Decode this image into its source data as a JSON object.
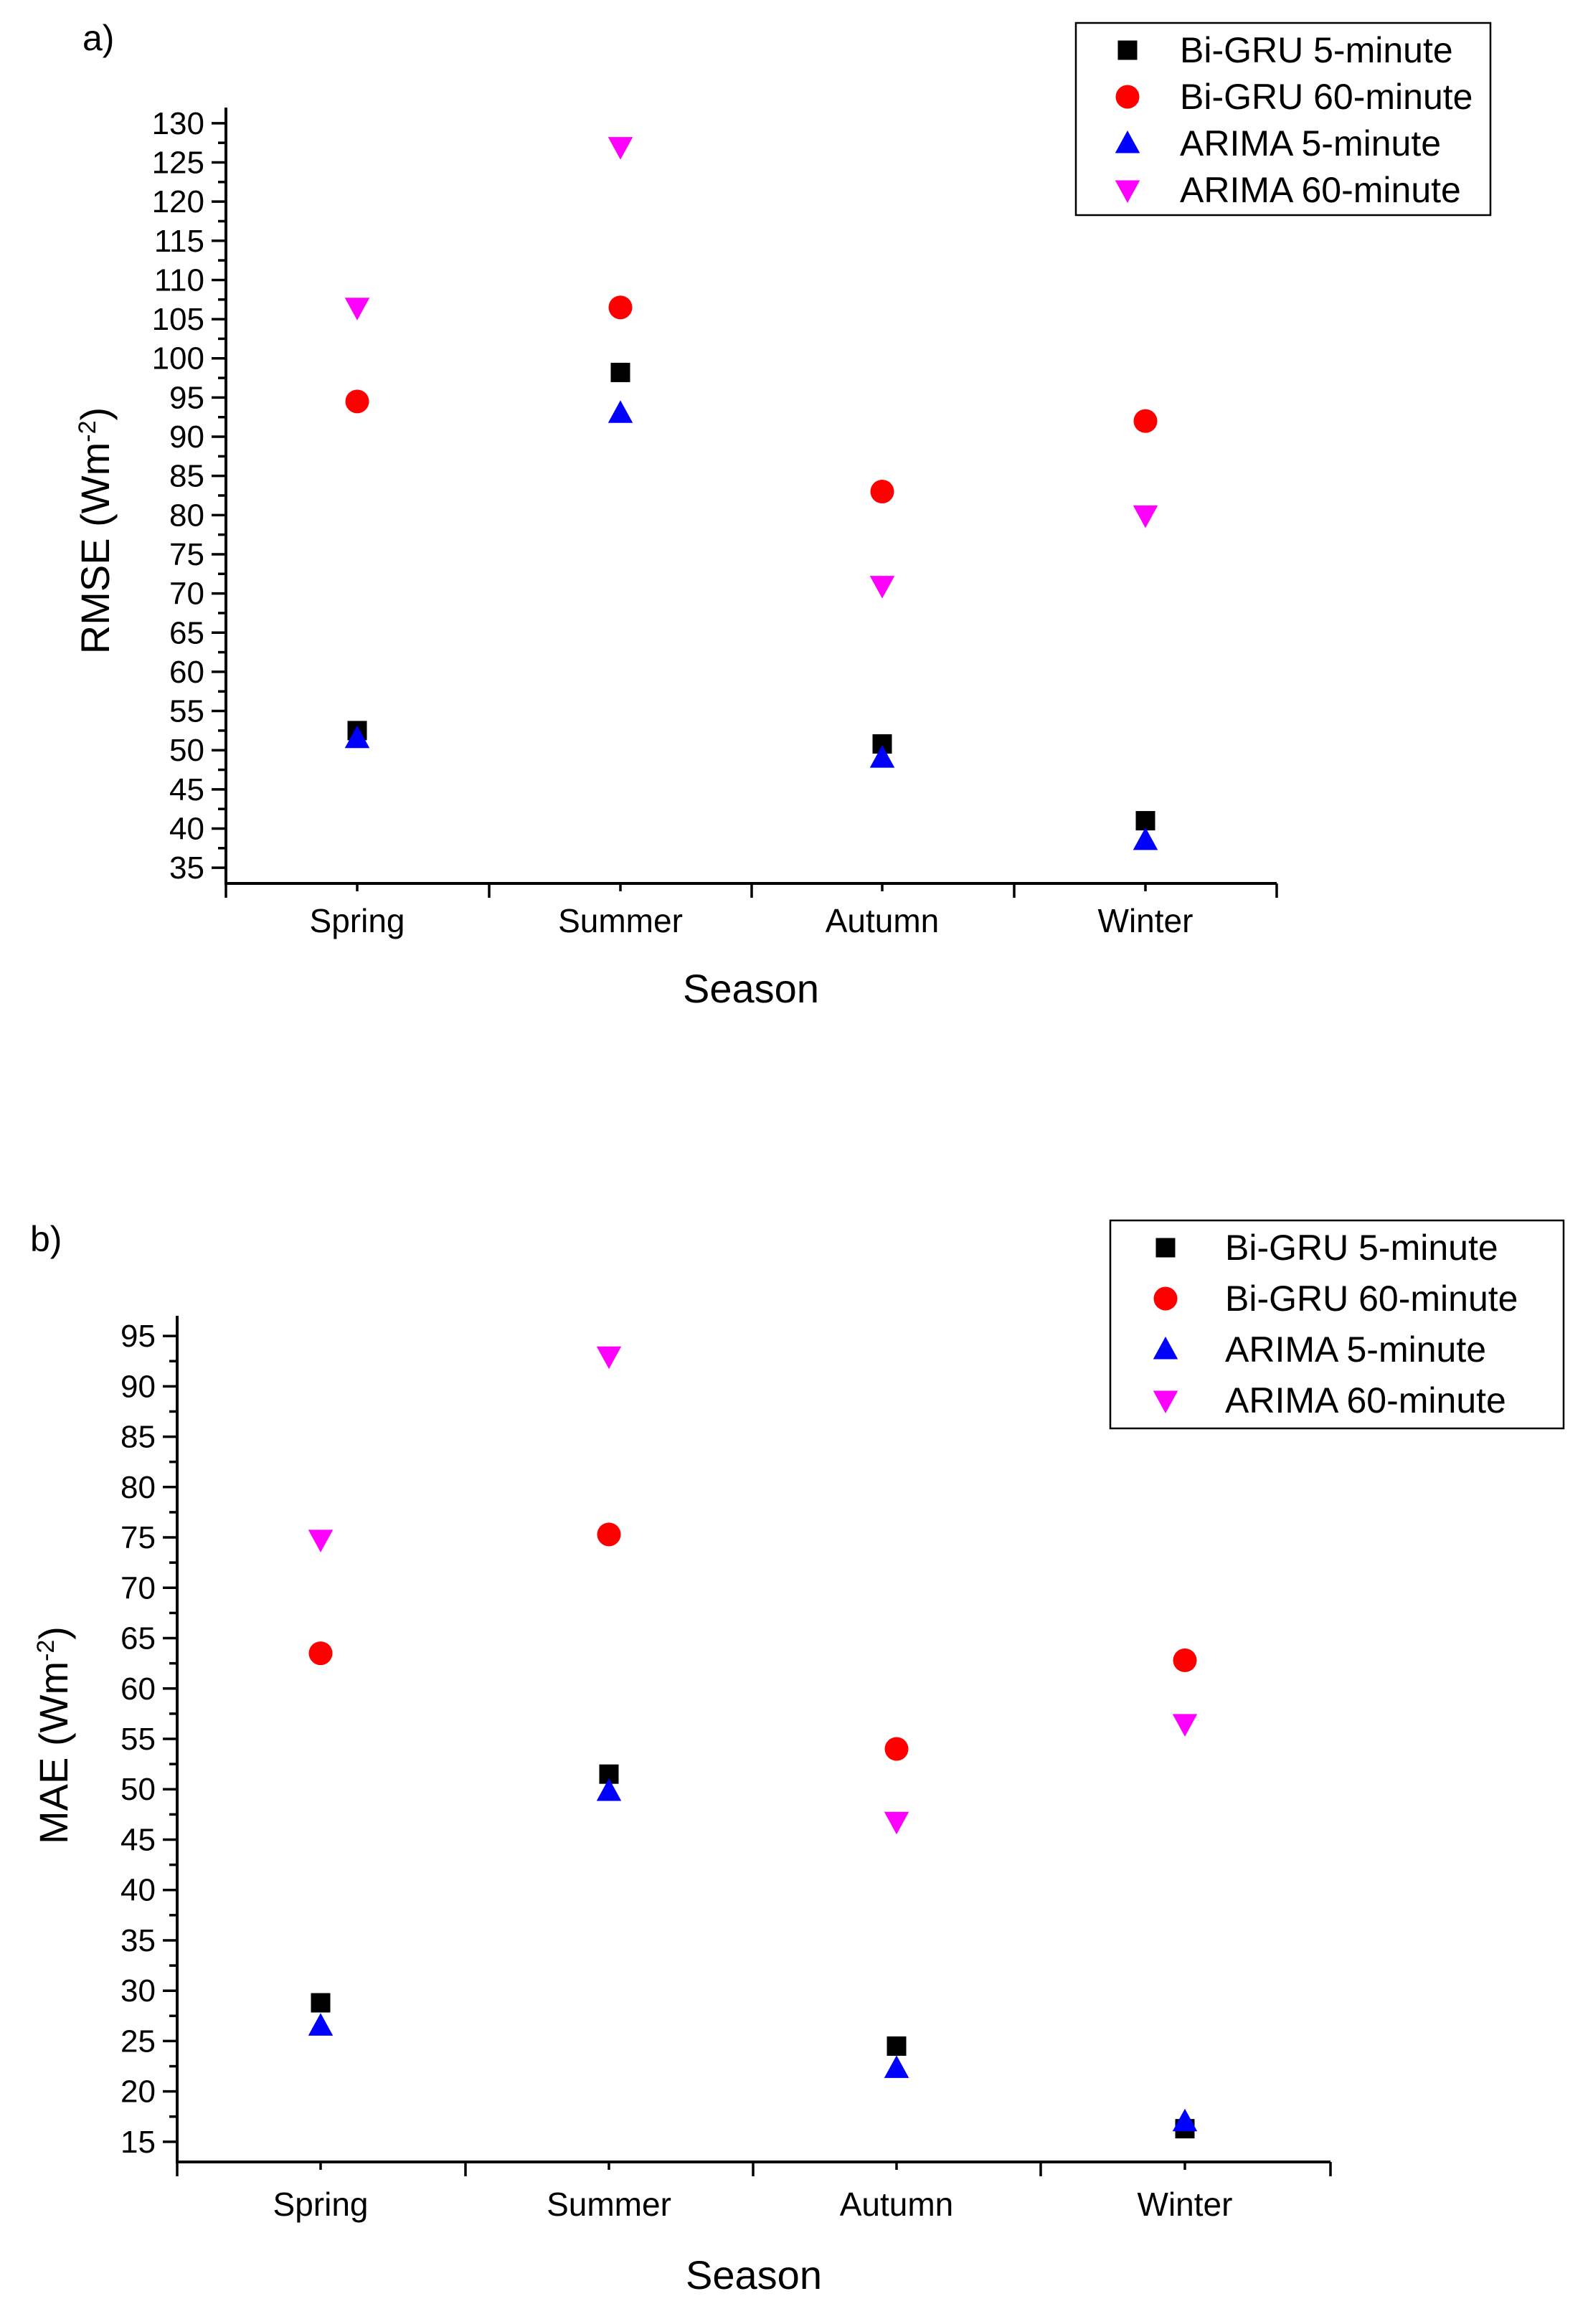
{
  "chart_data": [
    {
      "type": "scatter",
      "panel_label": "a)",
      "categories": [
        "Spring",
        "Summer",
        "Autumn",
        "Winter"
      ],
      "xlabel": "Season",
      "ylabel": "RMSE (Wm",
      "ylabel_superscript": "-2",
      "ylabel_close": ")",
      "ylim": [
        35,
        130
      ],
      "yticks_major": [
        35,
        40,
        45,
        50,
        55,
        60,
        65,
        70,
        75,
        80,
        85,
        90,
        95,
        100,
        105,
        110,
        115,
        120,
        125,
        130
      ],
      "legend_position": "top-right",
      "series": [
        {
          "name": "Bi-GRU 5-minute",
          "marker": "square",
          "color": "#000000",
          "values": [
            52.5,
            98.2,
            50.8,
            41.0
          ]
        },
        {
          "name": "Bi-GRU 60-minute",
          "marker": "circle",
          "color": "#ff0000",
          "values": [
            94.5,
            106.5,
            83.0,
            92.0
          ]
        },
        {
          "name": "ARIMA 5-minute",
          "marker": "triangle-up",
          "color": "#0000ff",
          "values": [
            51.5,
            93.0,
            49.0,
            38.5
          ]
        },
        {
          "name": "ARIMA 60-minute",
          "marker": "triangle-down",
          "color": "#ff00ff",
          "values": [
            106.5,
            127.0,
            71.0,
            80.0
          ]
        }
      ]
    },
    {
      "type": "scatter",
      "panel_label": "b)",
      "categories": [
        "Spring",
        "Summer",
        "Autumn",
        "Winter"
      ],
      "xlabel": "Season",
      "ylabel": "MAE (Wm",
      "ylabel_superscript": "-2",
      "ylabel_close": ")",
      "ylim": [
        15,
        95
      ],
      "yticks_major": [
        15,
        20,
        25,
        30,
        35,
        40,
        45,
        50,
        55,
        60,
        65,
        70,
        75,
        80,
        85,
        90,
        95
      ],
      "legend_position": "top-right",
      "series": [
        {
          "name": "Bi-GRU 5-minute",
          "marker": "square",
          "color": "#000000",
          "values": [
            28.8,
            51.5,
            24.5,
            16.3
          ]
        },
        {
          "name": "Bi-GRU 60-minute",
          "marker": "circle",
          "color": "#ff0000",
          "values": [
            63.5,
            75.3,
            54.0,
            62.8
          ]
        },
        {
          "name": "ARIMA 5-minute",
          "marker": "triangle-up",
          "color": "#0000ff",
          "values": [
            26.5,
            49.8,
            22.3,
            17.0
          ]
        },
        {
          "name": "ARIMA 60-minute",
          "marker": "triangle-down",
          "color": "#ff00ff",
          "values": [
            74.8,
            93.0,
            46.8,
            56.5
          ]
        }
      ]
    }
  ]
}
